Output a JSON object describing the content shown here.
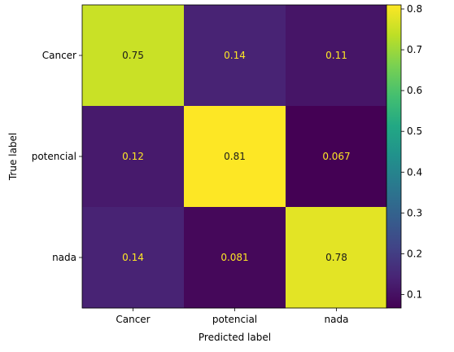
{
  "chart_data": {
    "type": "heatmap",
    "title": "",
    "xlabel": "Predicted label",
    "ylabel": "True label",
    "x_categories": [
      "Cancer",
      "potencial",
      "nada"
    ],
    "y_categories": [
      "Cancer",
      "potencial",
      "nada"
    ],
    "values": [
      [
        0.75,
        0.14,
        0.11
      ],
      [
        0.12,
        0.81,
        0.067
      ],
      [
        0.14,
        0.081,
        0.78
      ]
    ],
    "cell_labels": [
      [
        "0.75",
        "0.14",
        "0.11"
      ],
      [
        "0.12",
        "0.81",
        "0.067"
      ],
      [
        "0.14",
        "0.081",
        "0.78"
      ]
    ],
    "colormap": "viridis",
    "colorbar": {
      "range": [
        0.067,
        0.81
      ],
      "ticks": [
        0.1,
        0.2,
        0.3,
        0.4,
        0.5,
        0.6,
        0.7,
        0.8
      ],
      "tick_labels": [
        "0.1",
        "0.2",
        "0.3",
        "0.4",
        "0.5",
        "0.6",
        "0.7",
        "0.8"
      ]
    },
    "grid": false,
    "colors": {
      "label_dark": "#1a1a1a",
      "label_light": "#fde725"
    }
  }
}
